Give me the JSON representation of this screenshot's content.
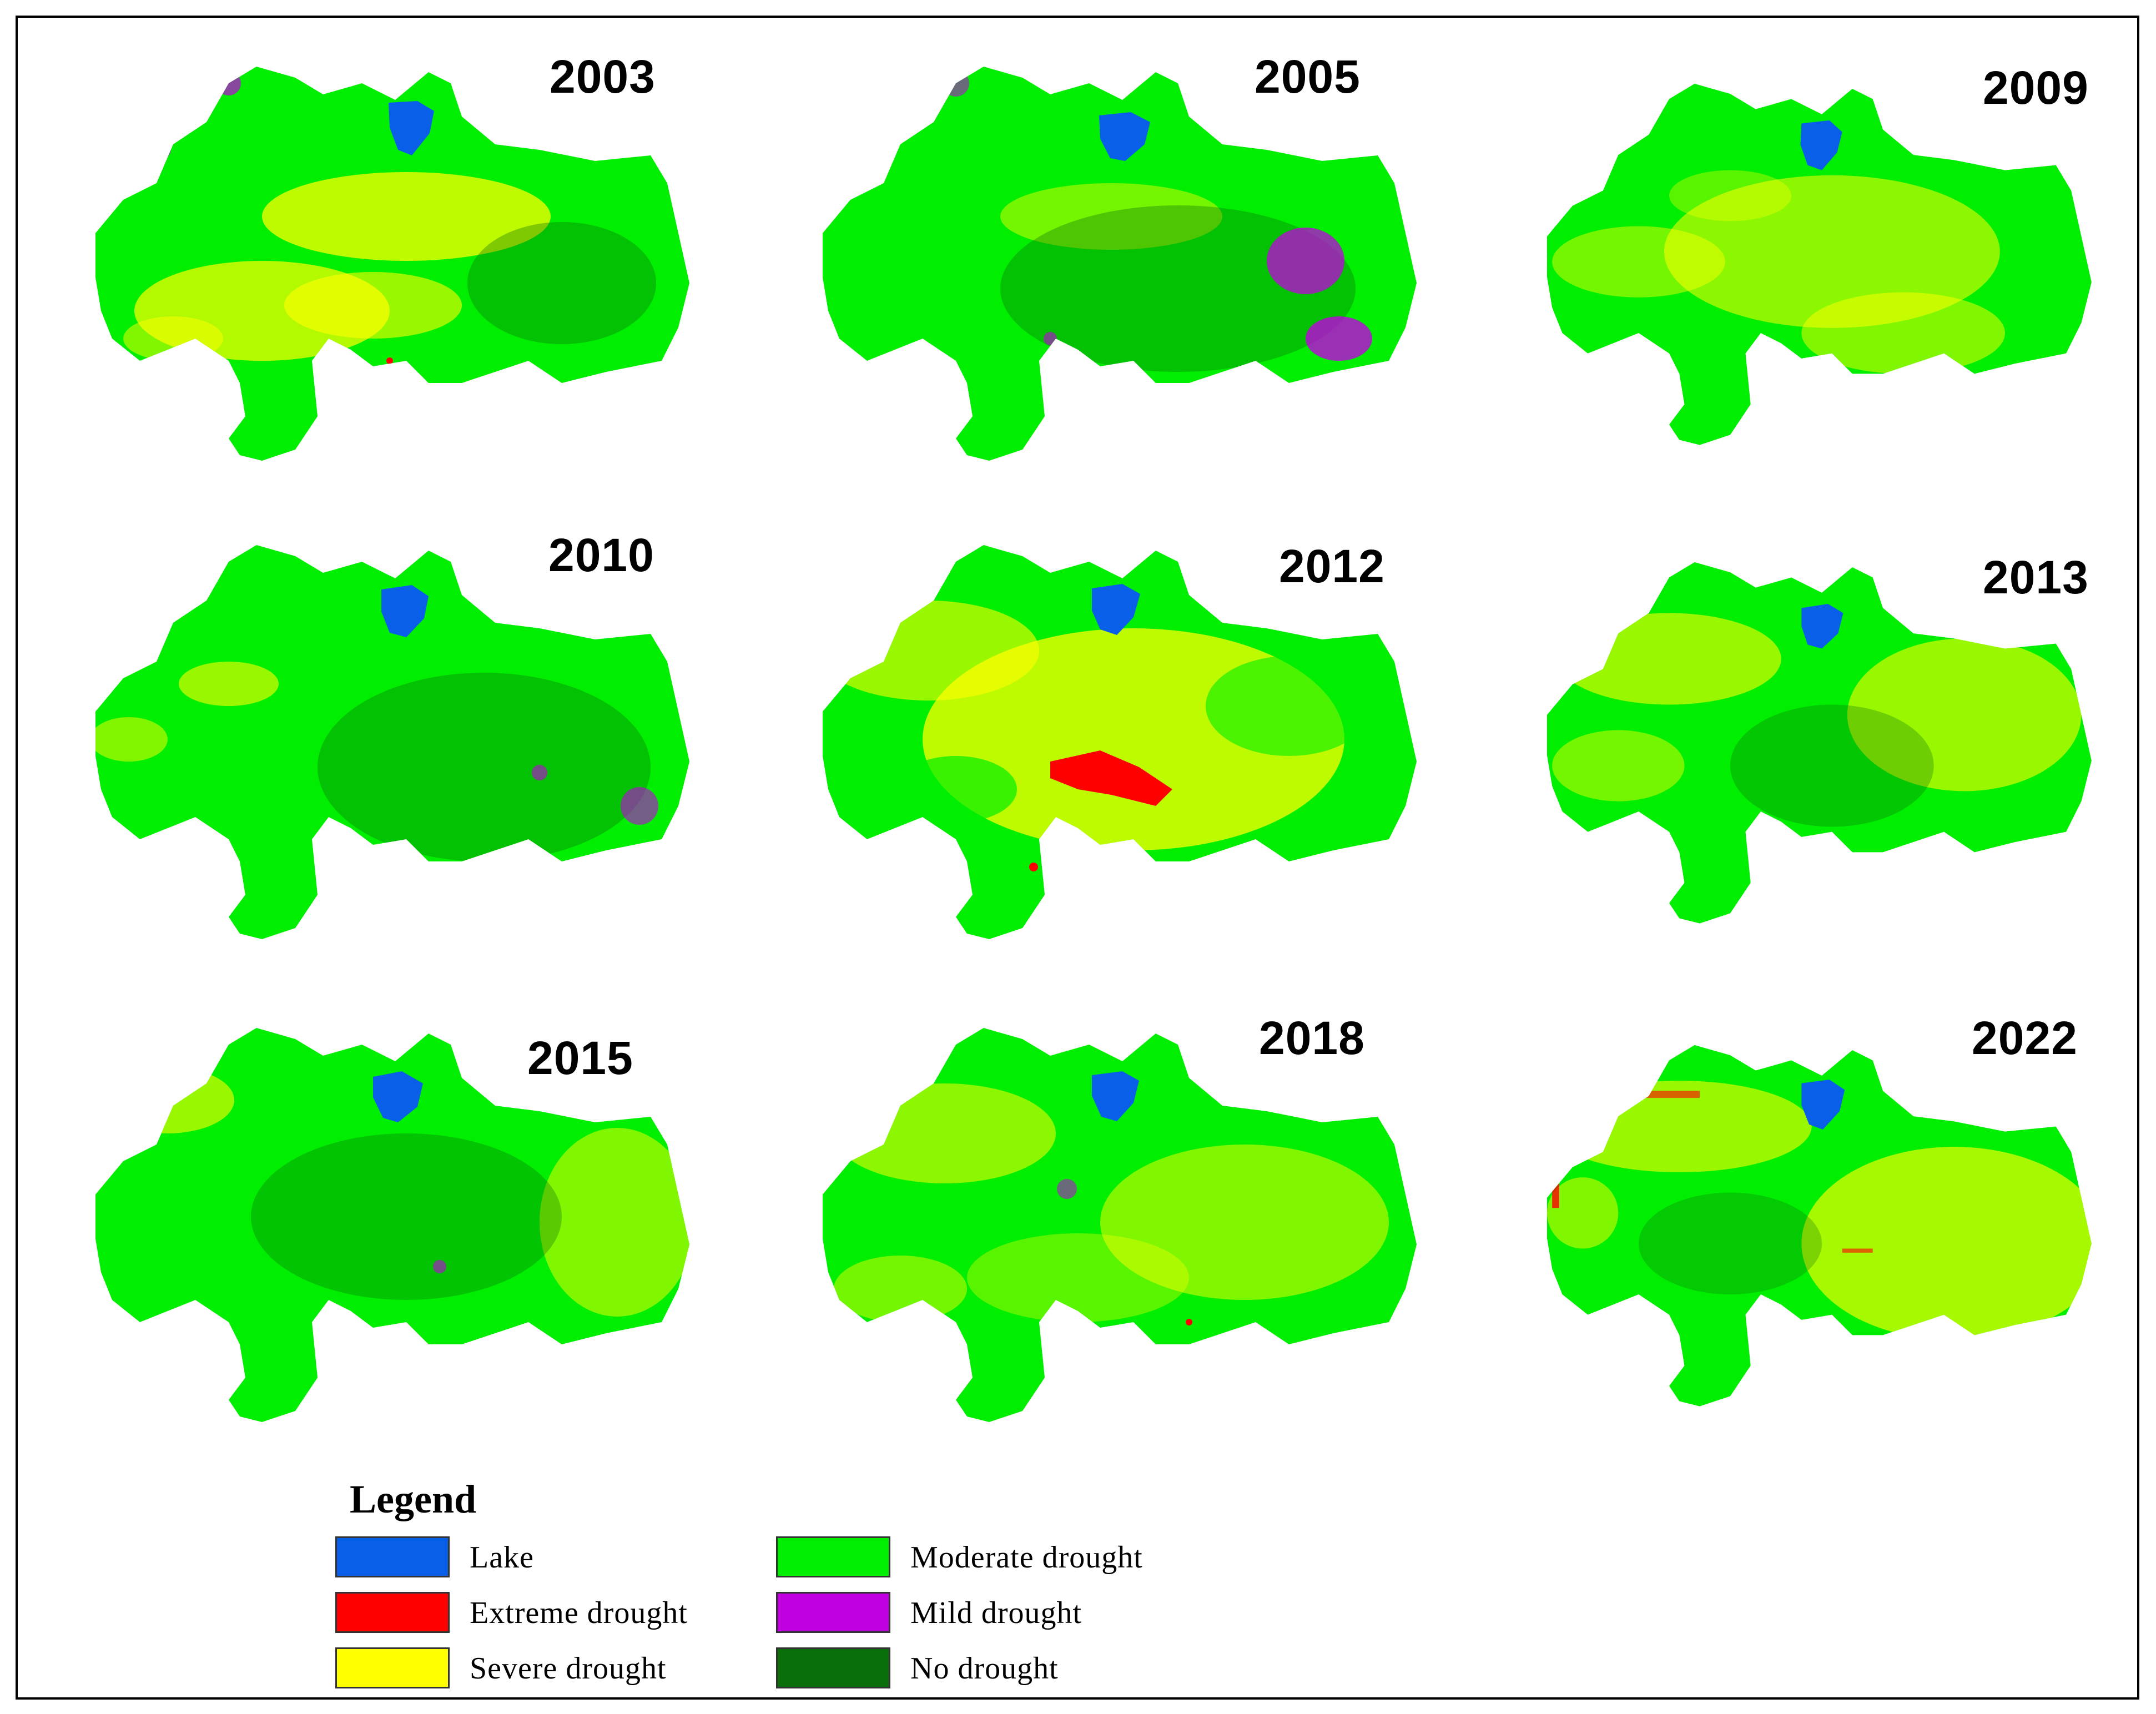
{
  "figure": {
    "panels": [
      {
        "year": "2003"
      },
      {
        "year": "2005"
      },
      {
        "year": "2009"
      },
      {
        "year": "2010"
      },
      {
        "year": "2012"
      },
      {
        "year": "2013"
      },
      {
        "year": "2015"
      },
      {
        "year": "2018"
      },
      {
        "year": "2022"
      }
    ]
  },
  "legend": {
    "title": "Legend",
    "items": [
      {
        "label": "Lake",
        "color": "#0a5fe8"
      },
      {
        "label": "Extreme drought",
        "color": "#ff0000"
      },
      {
        "label": "Severe drought",
        "color": "#ffff00"
      },
      {
        "label": "Moderate drought",
        "color": "#00ee00"
      },
      {
        "label": "Mild drought",
        "color": "#c000e0"
      },
      {
        "label": "No drought",
        "color": "#0a6e0a"
      }
    ]
  }
}
